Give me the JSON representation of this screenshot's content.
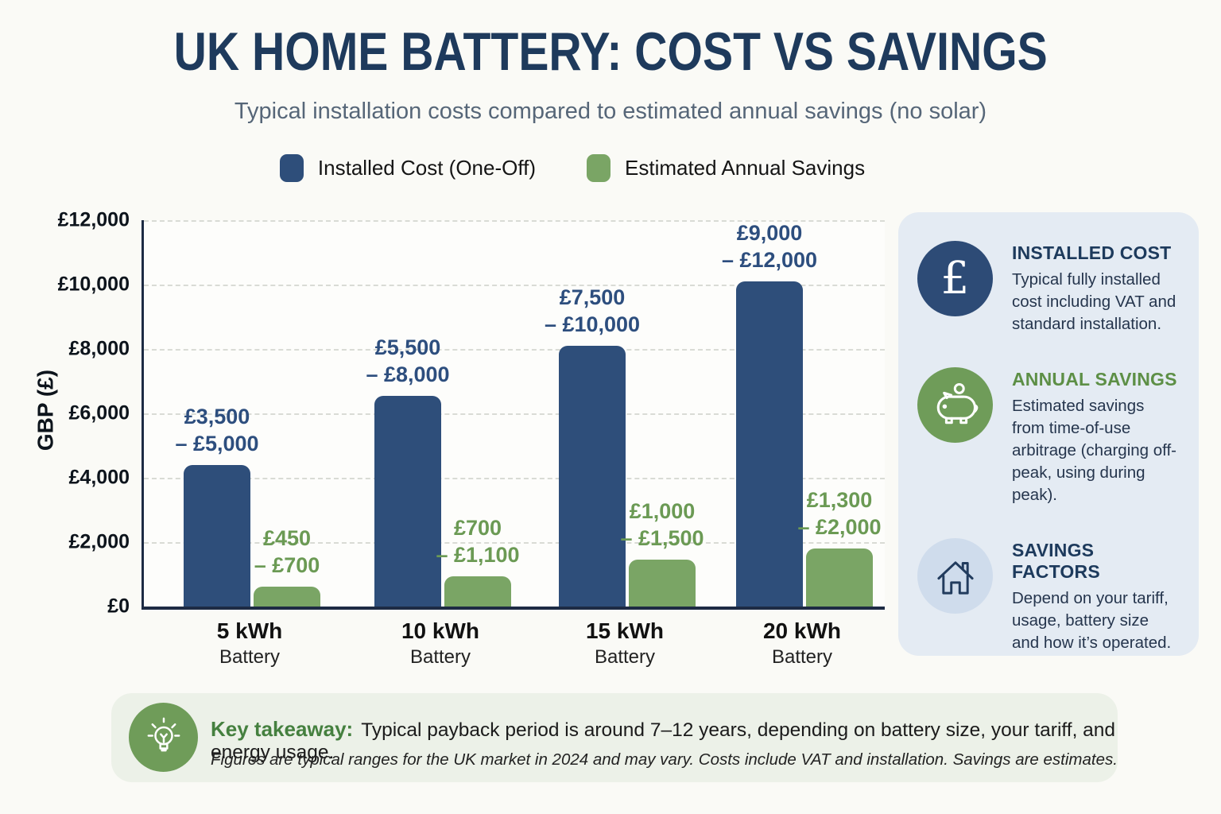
{
  "title": "UK HOME BATTERY: COST VS SAVINGS",
  "subtitle": "Typical installation costs compared to estimated annual savings (no solar)",
  "colors": {
    "navy_bar": "#2e4e7a",
    "green_bar": "#7aa565",
    "navy_label": "#2d4e7e",
    "green_label": "#6b9a54",
    "title_navy": "#1e3a5c",
    "subtitle_gray": "#566678",
    "sidebar_bg": "#e4ebf3",
    "takeaway_bg": "#ecf1e8",
    "pound_circle": "#2d4b76",
    "green_circle": "#6f9c59",
    "house_circle": "#cfdcec",
    "green_heading": "#5d8f46",
    "axis": "#1d2b44"
  },
  "legend": [
    {
      "label": "Installed Cost (One-Off)",
      "color": "#2e4e7a"
    },
    {
      "label": "Estimated Annual Savings",
      "color": "#7aa565"
    }
  ],
  "chart_data": {
    "type": "bar",
    "title": "UK Home Battery: Cost vs Savings",
    "subtitle": "Typical installation costs compared to estimated annual savings (no solar)",
    "xlabel": "",
    "ylabel": "GBP (£)",
    "ylim": [
      0,
      12000
    ],
    "ytick_interval": 2000,
    "yticks": [
      "£12,000",
      "£10,000",
      "£8,000",
      "£6,000",
      "£4,000",
      "£2,000",
      "£0"
    ],
    "grid": "horizontal-dashed",
    "legend_position": "top",
    "categories": [
      "5 kWh",
      "10 kWh",
      "15 kWh",
      "20 kWh"
    ],
    "category_subline": "Battery",
    "series": [
      {
        "name": "Installed Cost (One-Off)",
        "color": "#2e4e7a",
        "label_color": "#2d4e7e",
        "values": [
          4400,
          6550,
          8100,
          10100
        ],
        "range_low": [
          3500,
          5500,
          7500,
          9000
        ],
        "range_high": [
          5000,
          8000,
          10000,
          12000
        ],
        "labels": [
          "£3,500\n– £5,000",
          "£5,500\n– £8,000",
          "£7,500\n– £10,000",
          "£9,000\n– £12,000"
        ]
      },
      {
        "name": "Estimated Annual Savings",
        "color": "#7aa565",
        "label_color": "#6b9a54",
        "values": [
          620,
          950,
          1450,
          1800
        ],
        "range_low": [
          450,
          700,
          1000,
          1300
        ],
        "range_high": [
          700,
          1100,
          1500,
          2000
        ],
        "labels": [
          "£450\n– £700",
          "£700\n– £1,100",
          "£1,000\n– £1,500",
          "£1,300\n– £2,000"
        ]
      }
    ]
  },
  "sidebar": {
    "items": [
      {
        "icon": "pound-icon",
        "icon_bg": "#2d4b76",
        "title": "INSTALLED COST",
        "title_color": "#1d3a5c",
        "text": "Typical fully installed cost including VAT and standard installation."
      },
      {
        "icon": "piggy-bank-icon",
        "icon_bg": "#6f9c59",
        "title": "ANNUAL SAVINGS",
        "title_color": "#5d8f46",
        "text": "Estimated savings from time-of-use arbitrage (charging off-peak, using during peak)."
      },
      {
        "icon": "house-icon",
        "icon_bg": "#cfdcec",
        "title": "SAVINGS FACTORS",
        "title_color": "#1d3a5c",
        "text": "Depend on your tariff, usage, battery size and how it’s operated."
      }
    ]
  },
  "takeaway": {
    "heading": "Key takeaway:",
    "text": "Typical payback period is around 7–12 years, depending on battery size, your tariff, and energy usage.",
    "footnote": "Figures are typical ranges for the UK market in 2024 and may vary. Costs include VAT and installation. Savings are estimates."
  }
}
